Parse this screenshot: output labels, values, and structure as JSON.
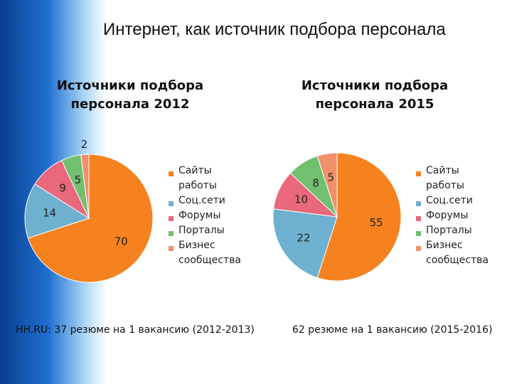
{
  "title": "Интернет, как источник подбора персонала",
  "captions": [
    "HH.RU: 37 резюме на 1 вакансию (2012-2013)",
    "62 резюме на 1 вакансию (2015-2016)"
  ],
  "chart_data": [
    {
      "type": "pie",
      "title": "Источники подбора персонала 2012",
      "categories": [
        "Сайты работы",
        "Соц.сети",
        "Форумы",
        "Порталы",
        "Бизнес сообщества"
      ],
      "values": [
        70,
        14,
        9,
        5,
        2
      ],
      "colors": [
        "#f5821f",
        "#6eb0cf",
        "#e9687b",
        "#72bf6f",
        "#f0906b"
      ]
    },
    {
      "type": "pie",
      "title": "Источники подбора персонала 2015",
      "categories": [
        "Сайты работы",
        "Соц.сети",
        "Форумы",
        "Порталы",
        "Бизнес сообщества"
      ],
      "values": [
        55,
        22,
        10,
        8,
        5
      ],
      "colors": [
        "#f5821f",
        "#6eb0cf",
        "#e9687b",
        "#72bf6f",
        "#f0906b"
      ]
    }
  ]
}
